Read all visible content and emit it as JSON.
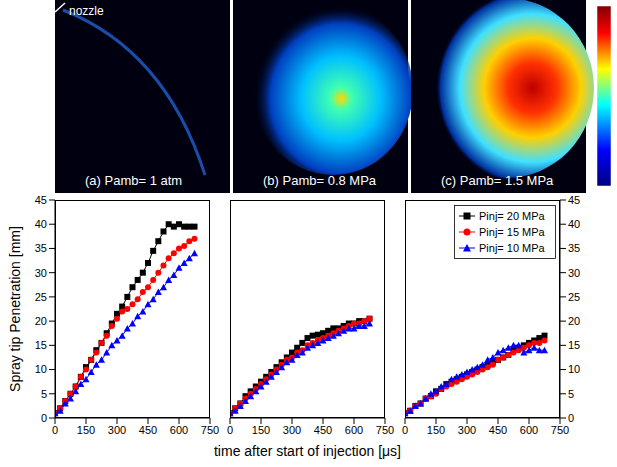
{
  "images": {
    "nozzle_label": "nozzle",
    "panels": [
      "(a) Pamb= 1 atm",
      "(b) Pamb= 0.8 MPa",
      "(c) Pamb= 1.5 MPa"
    ]
  },
  "x_label": "time after start of injection [μs]",
  "y_label": "Spray tip Penetration [mm]",
  "chart_data": [
    {
      "type": "line",
      "x": [
        0,
        25,
        50,
        75,
        100,
        125,
        150,
        175,
        200,
        225,
        250,
        275,
        300,
        325,
        350,
        375,
        400,
        425,
        450,
        475,
        500,
        525,
        550,
        575,
        600,
        625,
        650,
        675
      ],
      "xlim": [
        0,
        750
      ],
      "xticks": [
        0,
        150,
        300,
        450,
        600,
        750
      ],
      "ylim": [
        0,
        45
      ],
      "yticks": [
        0,
        5,
        10,
        15,
        20,
        25,
        30,
        35,
        40,
        45
      ],
      "series": [
        {
          "name": "Pinj= 20 MPa",
          "color": "#000000",
          "marker": "square",
          "values": [
            1,
            2,
            3.5,
            5,
            6.5,
            8.5,
            10.5,
            12,
            14,
            15.5,
            17.5,
            19.5,
            21.5,
            23,
            25,
            27,
            28.5,
            30,
            32,
            34.5,
            36.5,
            38.5,
            40,
            39.5,
            40,
            39.5,
            39.5,
            39.5
          ]
        },
        {
          "name": "Pinj= 15 MPa",
          "color": "#ff0000",
          "marker": "circle",
          "values": [
            1,
            2,
            3.5,
            5,
            6.5,
            8.5,
            10,
            12,
            13.5,
            15.5,
            17,
            19,
            20.5,
            22,
            22.5,
            23.5,
            24.5,
            26,
            27,
            28.5,
            30,
            31.5,
            33,
            34,
            35,
            35.5,
            36.5,
            37
          ]
        },
        {
          "name": "Pinj= 10 MPa",
          "color": "#0000ff",
          "marker": "triangle",
          "values": [
            1,
            1.5,
            3,
            4,
            5.5,
            7,
            8,
            9.5,
            11,
            12,
            13.5,
            15,
            16,
            17,
            18.5,
            19.5,
            21,
            22,
            23.5,
            24.5,
            26,
            27,
            28.5,
            29.5,
            31,
            32,
            33,
            34
          ]
        }
      ]
    },
    {
      "type": "line",
      "x": [
        0,
        25,
        50,
        75,
        100,
        125,
        150,
        175,
        200,
        225,
        250,
        275,
        300,
        325,
        350,
        375,
        400,
        425,
        450,
        475,
        500,
        525,
        550,
        575,
        600,
        625,
        650,
        675
      ],
      "xlim": [
        0,
        750
      ],
      "xticks": [
        0,
        150,
        300,
        450,
        600,
        750
      ],
      "ylim": [
        0,
        45
      ],
      "yticks": [
        0,
        5,
        10,
        15,
        20,
        25,
        30,
        35,
        40,
        45
      ],
      "tick_labels": "x",
      "series": [
        {
          "name": "Pinj= 20 MPa",
          "color": "#000000",
          "marker": "square",
          "values": [
            1,
            2,
            3,
            4.5,
            5.5,
            6.5,
            7.5,
            8.5,
            9.5,
            10.5,
            11.5,
            12.5,
            13.5,
            14.5,
            15.5,
            16.5,
            17,
            17.2,
            17.5,
            18,
            18.5,
            18.5,
            19,
            19.5,
            19.5,
            20,
            20,
            20.5
          ]
        },
        {
          "name": "Pinj= 15 MPa",
          "color": "#ff0000",
          "marker": "circle",
          "values": [
            1,
            2,
            3,
            4,
            5,
            6,
            7,
            8,
            9,
            10,
            11,
            12,
            12.5,
            13.5,
            14,
            15,
            15.5,
            16,
            16.5,
            17,
            17.5,
            18,
            18.5,
            19,
            19.5,
            19.5,
            20,
            20.5
          ]
        },
        {
          "name": "Pinj= 10 MPa",
          "color": "#0000ff",
          "marker": "triangle",
          "values": [
            1,
            1.5,
            2.5,
            3.5,
            4.5,
            5.5,
            6.5,
            7.5,
            8.5,
            9.5,
            10.5,
            11.5,
            12,
            13,
            13.5,
            14.5,
            15,
            15.5,
            16,
            16.5,
            17,
            17.5,
            18,
            18.5,
            18.5,
            19,
            19,
            19.5
          ]
        }
      ]
    },
    {
      "type": "line",
      "x": [
        0,
        25,
        50,
        75,
        100,
        125,
        150,
        175,
        200,
        225,
        250,
        275,
        300,
        325,
        350,
        375,
        400,
        425,
        450,
        475,
        500,
        525,
        550,
        575,
        600,
        625,
        650,
        675
      ],
      "xlim": [
        0,
        750
      ],
      "xticks": [
        0,
        150,
        300,
        450,
        600,
        750
      ],
      "ylim": [
        0,
        45
      ],
      "yticks": [
        0,
        5,
        10,
        15,
        20,
        25,
        30,
        35,
        40,
        45
      ],
      "legend": "upper right",
      "series": [
        {
          "name": "Pinj= 20 MPa",
          "color": "#000000",
          "marker": "square",
          "values": [
            1,
            1.5,
            2.5,
            3,
            4,
            4.5,
            5.5,
            6,
            7,
            7.5,
            8,
            8.5,
            9,
            9.5,
            10,
            10.5,
            11,
            11.5,
            12,
            12.5,
            13,
            14,
            14.5,
            15,
            15.5,
            16,
            16.5,
            17
          ]
        },
        {
          "name": "Pinj= 15 MPa",
          "color": "#ff0000",
          "marker": "circle",
          "values": [
            1,
            1.5,
            2.5,
            3,
            4,
            4.5,
            5,
            6,
            6.5,
            7,
            7.5,
            8,
            8.5,
            9,
            9.5,
            10,
            10.5,
            11,
            12,
            12.5,
            13,
            13.5,
            14,
            14.5,
            15,
            15.5,
            15.5,
            16
          ]
        },
        {
          "name": "Pinj= 10 MPa",
          "color": "#0000ff",
          "marker": "triangle",
          "values": [
            1,
            1.5,
            2.5,
            3,
            4,
            5,
            5.5,
            6.5,
            7,
            8,
            8.5,
            9,
            9.5,
            10,
            10.5,
            11,
            12,
            12.5,
            13.5,
            14,
            14.5,
            15,
            15,
            13.5,
            14,
            14.5,
            14,
            14
          ]
        }
      ]
    }
  ]
}
